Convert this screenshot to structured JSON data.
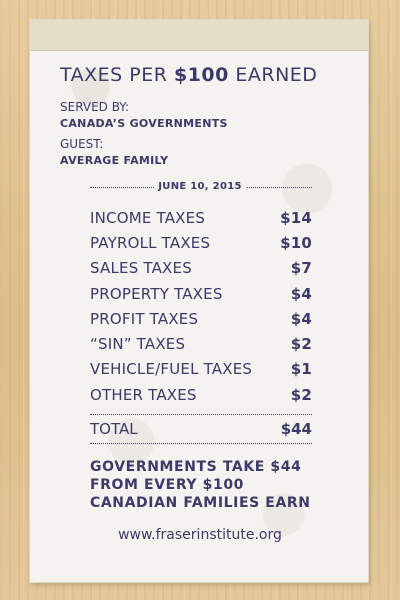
{
  "receipt": {
    "title_prefix": "TAXES PER ",
    "title_amount": "$100",
    "title_suffix": " EARNED",
    "served_by_label": "SERVED BY:",
    "served_by_value": "CANADA’S GOVERNMENTS",
    "guest_label": "GUEST:",
    "guest_value": "AVERAGE FAMILY",
    "date": "JUNE 10, 2015",
    "items": [
      {
        "label": "INCOME TAXES",
        "amount": "$14"
      },
      {
        "label": "PAYROLL TAXES",
        "amount": "$10"
      },
      {
        "label": "SALES TAXES",
        "amount": "$7"
      },
      {
        "label": "PROPERTY TAXES",
        "amount": "$4"
      },
      {
        "label": "PROFIT TAXES",
        "amount": "$4"
      },
      {
        "label": "“SIN” TAXES",
        "amount": "$2"
      },
      {
        "label": "VEHICLE/FUEL TAXES",
        "amount": "$1"
      },
      {
        "label": "OTHER TAXES",
        "amount": "$2"
      }
    ],
    "total_label": "TOTAL",
    "total_amount": "$44",
    "summary_lines": [
      "GOVERNMENTS TAKE $44",
      "FROM EVERY $100",
      "CANADIAN FAMILIES EARN"
    ],
    "url": "www.fraserinstitute.org"
  },
  "colors": {
    "ink": "#3b3a68",
    "paper": "#f4f3ef",
    "wood": "#e2c595"
  }
}
